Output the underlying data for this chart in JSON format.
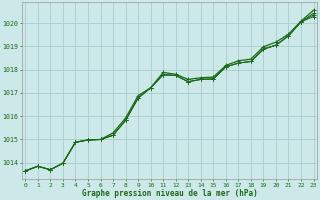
{
  "title": "Graphe pression niveau de la mer (hPa)",
  "bg_color": "#cce8e8",
  "grid_color": "#aacccc",
  "line_color": "#1a6b1a",
  "xlim": [
    -0.3,
    23.3
  ],
  "ylim": [
    1013.3,
    1020.9
  ],
  "xticks": [
    0,
    1,
    2,
    3,
    4,
    5,
    6,
    7,
    8,
    9,
    10,
    11,
    12,
    13,
    14,
    15,
    16,
    17,
    18,
    19,
    20,
    21,
    22,
    23
  ],
  "yticks": [
    1014,
    1015,
    1016,
    1017,
    1018,
    1019,
    1020
  ],
  "hours": [
    0,
    1,
    2,
    3,
    4,
    5,
    6,
    7,
    8,
    9,
    10,
    11,
    12,
    13,
    14,
    15,
    16,
    17,
    18,
    19,
    20,
    21,
    22,
    23
  ],
  "line_main": [
    1013.65,
    1013.85,
    1013.7,
    1013.98,
    1014.88,
    1014.98,
    1015.0,
    1015.18,
    1015.82,
    1016.78,
    1017.22,
    1017.78,
    1017.75,
    1017.48,
    1017.58,
    1017.6,
    1018.12,
    1018.28,
    1018.35,
    1018.88,
    1019.05,
    1019.45,
    1020.05,
    1020.28
  ],
  "line_close1": [
    1013.65,
    1013.85,
    1013.7,
    1013.98,
    1014.88,
    1014.98,
    1015.0,
    1015.18,
    1015.82,
    1016.78,
    1017.22,
    1017.78,
    1017.75,
    1017.48,
    1017.58,
    1017.6,
    1018.12,
    1018.28,
    1018.35,
    1018.88,
    1019.05,
    1019.45,
    1020.05,
    1020.35
  ],
  "line_close2": [
    1013.65,
    1013.85,
    1013.7,
    1013.98,
    1014.88,
    1014.98,
    1015.0,
    1015.18,
    1015.82,
    1016.78,
    1017.22,
    1017.78,
    1017.75,
    1017.48,
    1017.58,
    1017.6,
    1018.12,
    1018.28,
    1018.35,
    1018.88,
    1019.05,
    1019.45,
    1020.05,
    1020.42
  ],
  "line_upper": [
    1013.65,
    1013.85,
    1013.7,
    1013.98,
    1014.88,
    1014.98,
    1015.0,
    1015.28,
    1015.92,
    1016.88,
    1017.22,
    1017.88,
    1017.8,
    1017.58,
    1017.65,
    1017.68,
    1018.18,
    1018.38,
    1018.45,
    1018.98,
    1019.18,
    1019.52,
    1020.08,
    1020.55
  ]
}
